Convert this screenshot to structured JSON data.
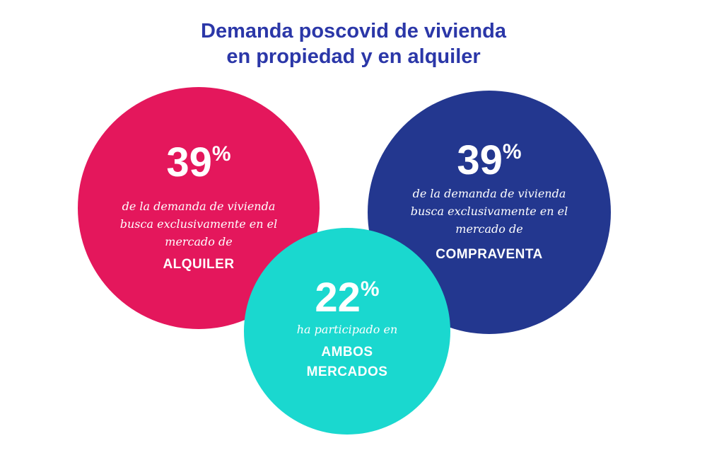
{
  "title": {
    "line1": "Demanda poscovid de vivienda",
    "line2": "en propiedad y en alquiler"
  },
  "colors": {
    "title": "#2b37a8",
    "alquiler": "#e4175c",
    "compraventa": "#23378f",
    "ambos": "#1ad8cf"
  },
  "chart_data": {
    "type": "bubble",
    "unit": "%",
    "items": [
      {
        "key": "alquiler",
        "value": 39,
        "desc_lines": [
          "de la demanda de vivienda",
          "busca exclusivamente en el",
          "mercado de"
        ],
        "label_lines": [
          "ALQUILER"
        ]
      },
      {
        "key": "compraventa",
        "value": 39,
        "desc_lines": [
          "de la demanda de vivienda",
          "busca exclusivamente en el",
          "mercado de"
        ],
        "label_lines": [
          "COMPRAVENTA"
        ]
      },
      {
        "key": "ambos",
        "value": 22,
        "desc_lines": [
          "ha participado en"
        ],
        "label_lines": [
          "AMBOS",
          "MERCADOS"
        ]
      }
    ]
  }
}
